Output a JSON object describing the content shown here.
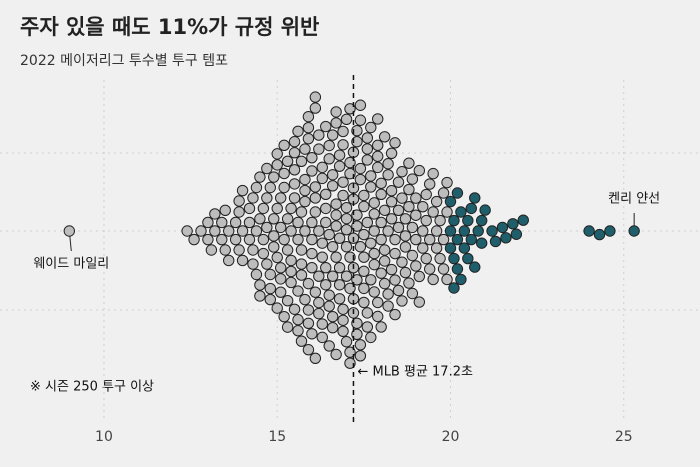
{
  "chart_data": {
    "type": "beeswarm",
    "title": "주자 있을 때도 11%가 규정 위반",
    "subtitle": "2022 메이저리그 투수별 투구 템포",
    "note": "※ 시즌 250 투구 이상",
    "xlim": [
      7,
      27.2
    ],
    "xticks": [
      10,
      15,
      20,
      25
    ],
    "grid": true,
    "color": "#bdbdbd",
    "highlight_color": "#1f5f6c",
    "highlight_threshold": 20,
    "reference": {
      "value": 17.2,
      "label": "← MLB 평균 17.2초"
    },
    "annotations": [
      {
        "label": "웨이드 마일리",
        "value": 9.0
      },
      {
        "label": "켄리 얀선",
        "value": 25.3
      }
    ],
    "values": [
      12.4,
      12.6,
      12.8,
      13.0,
      13.0,
      13.1,
      13.2,
      13.2,
      13.4,
      13.4,
      13.5,
      13.5,
      13.6,
      13.6,
      13.8,
      13.8,
      13.9,
      13.9,
      13.9,
      14.0,
      14.0,
      14.0,
      14.2,
      14.2,
      14.2,
      14.3,
      14.3,
      14.3,
      14.4,
      14.4,
      14.4,
      14.5,
      14.5,
      14.5,
      14.5,
      14.6,
      14.6,
      14.6,
      14.7,
      14.7,
      14.7,
      14.7,
      14.8,
      14.8,
      14.8,
      14.8,
      14.9,
      14.9,
      14.9,
      14.9,
      15.0,
      15.0,
      15.0,
      15.0,
      15.0,
      15.1,
      15.1,
      15.1,
      15.1,
      15.1,
      15.2,
      15.2,
      15.2,
      15.2,
      15.2,
      15.3,
      15.3,
      15.3,
      15.3,
      15.3,
      15.4,
      15.4,
      15.4,
      15.4,
      15.4,
      15.5,
      15.5,
      15.5,
      15.5,
      15.5,
      15.5,
      15.6,
      15.6,
      15.6,
      15.6,
      15.6,
      15.6,
      15.7,
      15.7,
      15.7,
      15.7,
      15.7,
      15.7,
      15.8,
      15.8,
      15.8,
      15.8,
      15.8,
      15.8,
      15.9,
      15.9,
      15.9,
      15.9,
      15.9,
      15.9,
      15.9,
      16.0,
      16.0,
      16.0,
      16.0,
      16.0,
      16.0,
      16.0,
      16.1,
      16.1,
      16.1,
      16.1,
      16.1,
      16.1,
      16.1,
      16.2,
      16.2,
      16.2,
      16.2,
      16.2,
      16.2,
      16.3,
      16.3,
      16.3,
      16.3,
      16.3,
      16.3,
      16.4,
      16.4,
      16.4,
      16.4,
      16.4,
      16.4,
      16.5,
      16.5,
      16.5,
      16.5,
      16.5,
      16.5,
      16.6,
      16.6,
      16.6,
      16.6,
      16.6,
      16.6,
      16.6,
      16.7,
      16.7,
      16.7,
      16.7,
      16.7,
      16.7,
      16.7,
      16.8,
      16.8,
      16.8,
      16.8,
      16.8,
      16.8,
      16.9,
      16.9,
      16.9,
      16.9,
      16.9,
      16.9,
      16.9,
      17.0,
      17.0,
      17.0,
      17.0,
      17.0,
      17.0,
      17.0,
      17.1,
      17.1,
      17.1,
      17.1,
      17.1,
      17.1,
      17.1,
      17.2,
      17.2,
      17.2,
      17.2,
      17.2,
      17.2,
      17.2,
      17.3,
      17.3,
      17.3,
      17.3,
      17.3,
      17.3,
      17.3,
      17.4,
      17.4,
      17.4,
      17.4,
      17.4,
      17.4,
      17.4,
      17.5,
      17.5,
      17.5,
      17.5,
      17.5,
      17.5,
      17.5,
      17.6,
      17.6,
      17.6,
      17.6,
      17.6,
      17.6,
      17.7,
      17.7,
      17.7,
      17.7,
      17.7,
      17.7,
      17.8,
      17.8,
      17.8,
      17.8,
      17.8,
      17.8,
      17.9,
      17.9,
      17.9,
      17.9,
      17.9,
      17.9,
      18.0,
      18.0,
      18.0,
      18.0,
      18.0,
      18.0,
      18.1,
      18.1,
      18.1,
      18.1,
      18.1,
      18.2,
      18.2,
      18.2,
      18.2,
      18.2,
      18.3,
      18.3,
      18.3,
      18.3,
      18.3,
      18.4,
      18.4,
      18.4,
      18.4,
      18.4,
      18.5,
      18.5,
      18.5,
      18.5,
      18.6,
      18.6,
      18.6,
      18.6,
      18.7,
      18.7,
      18.7,
      18.7,
      18.8,
      18.8,
      18.8,
      18.8,
      18.9,
      18.9,
      18.9,
      18.9,
      19.0,
      19.0,
      19.0,
      19.0,
      19.1,
      19.1,
      19.1,
      19.2,
      19.2,
      19.2,
      19.3,
      19.3,
      19.3,
      19.4,
      19.4,
      19.4,
      19.5,
      19.5,
      19.5,
      19.6,
      19.6,
      19.6,
      19.7,
      19.7,
      19.8,
      19.8,
      19.8,
      19.9,
      19.9,
      19.9,
      20.0,
      20.0,
      20.0,
      20.1,
      20.1,
      20.1,
      20.2,
      20.2,
      20.2,
      20.3,
      20.3,
      20.4,
      20.4,
      20.5,
      20.5,
      20.6,
      20.6,
      20.7,
      20.7,
      20.8,
      20.9,
      20.9,
      21.0,
      21.2,
      21.3,
      21.5,
      21.6,
      21.8,
      21.9,
      22.1,
      24.0,
      24.3,
      24.6
    ]
  }
}
